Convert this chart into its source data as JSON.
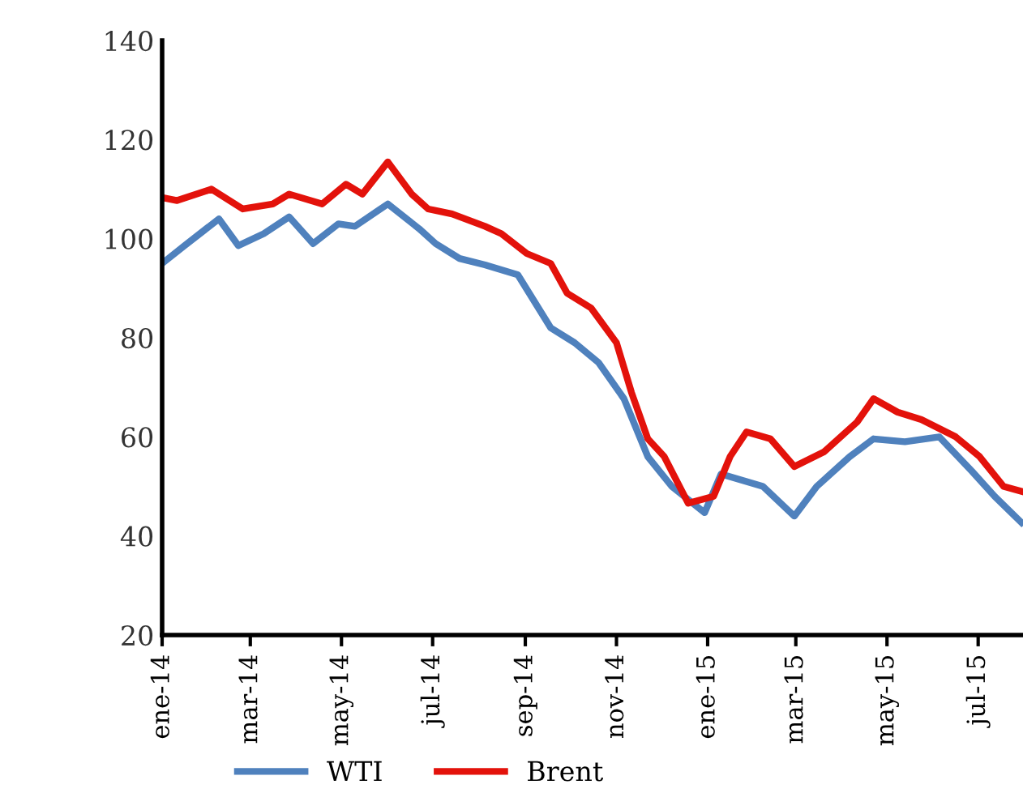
{
  "chart_data": {
    "type": "line",
    "ylim": [
      20,
      140
    ],
    "yticks": [
      20,
      40,
      60,
      80,
      100,
      120,
      140
    ],
    "xlim": [
      "2014-01-01",
      "2015-07-31"
    ],
    "xticks": [
      {
        "value": "2014-01-01",
        "label": "ene-14"
      },
      {
        "value": "2014-03-01",
        "label": "mar-14"
      },
      {
        "value": "2014-05-01",
        "label": "may-14"
      },
      {
        "value": "2014-07-01",
        "label": "jul-14"
      },
      {
        "value": "2014-09-01",
        "label": "sep-14"
      },
      {
        "value": "2014-11-01",
        "label": "nov-14"
      },
      {
        "value": "2015-01-01",
        "label": "ene-15"
      },
      {
        "value": "2015-03-01",
        "label": "mar-15"
      },
      {
        "value": "2015-05-01",
        "label": "may-15"
      },
      {
        "value": "2015-07-01",
        "label": "jul-15"
      }
    ],
    "grid": false,
    "legend": "bottom",
    "marker": "none",
    "line_style": "solid",
    "series": [
      {
        "name": "WTI",
        "color": "#4f81bd",
        "x": [
          "2014-01-01",
          "2014-01-16",
          "2014-02-08",
          "2014-02-21",
          "2014-03-10",
          "2014-03-27",
          "2014-04-12",
          "2014-04-29",
          "2014-05-10",
          "2014-06-01",
          "2014-06-22",
          "2014-07-03",
          "2014-07-19",
          "2014-08-05",
          "2014-08-27",
          "2014-09-18",
          "2014-10-04",
          "2014-10-20",
          "2014-11-06",
          "2014-11-22",
          "2014-12-08",
          "2014-12-30",
          "2015-01-10",
          "2015-01-21",
          "2015-02-07",
          "2015-02-28",
          "2015-03-15",
          "2015-04-06",
          "2015-04-22",
          "2015-05-13",
          "2015-06-05",
          "2015-06-27",
          "2015-07-12",
          "2015-07-30"
        ],
        "values": [
          95,
          98.6,
          104,
          98.6,
          101,
          104.4,
          99,
          103,
          102.5,
          107,
          102,
          99,
          96,
          94.7,
          92.7,
          82,
          79,
          75,
          67.7,
          56,
          50,
          44.7,
          52.5,
          51.5,
          50,
          44,
          50,
          56,
          59.6,
          59,
          60,
          53,
          48,
          42.7
        ]
      },
      {
        "name": "Brent",
        "color": "#e3120b",
        "x": [
          "2014-01-01",
          "2014-01-11",
          "2014-02-03",
          "2014-02-24",
          "2014-03-16",
          "2014-03-27",
          "2014-04-18",
          "2014-05-04",
          "2014-05-15",
          "2014-06-01",
          "2014-06-17",
          "2014-06-28",
          "2014-07-14",
          "2014-08-05",
          "2014-08-16",
          "2014-09-02",
          "2014-09-18",
          "2014-09-29",
          "2014-10-15",
          "2014-11-01",
          "2014-11-11",
          "2014-11-22",
          "2014-12-03",
          "2014-12-19",
          "2015-01-05",
          "2015-01-16",
          "2015-01-27",
          "2015-02-12",
          "2015-02-28",
          "2015-03-20",
          "2015-04-11",
          "2015-04-22",
          "2015-05-08",
          "2015-05-24",
          "2015-06-16",
          "2015-07-02",
          "2015-07-18",
          "2015-07-30"
        ],
        "values": [
          108.3,
          107.7,
          110,
          106,
          107,
          109,
          107,
          111,
          109,
          115.5,
          109,
          106,
          105,
          102.5,
          101,
          97,
          95,
          89,
          86,
          79,
          69,
          59.6,
          56,
          46.6,
          48,
          56,
          61,
          59.6,
          54,
          57,
          63,
          67.7,
          65,
          63.5,
          60,
          56,
          50,
          49
        ]
      }
    ]
  }
}
